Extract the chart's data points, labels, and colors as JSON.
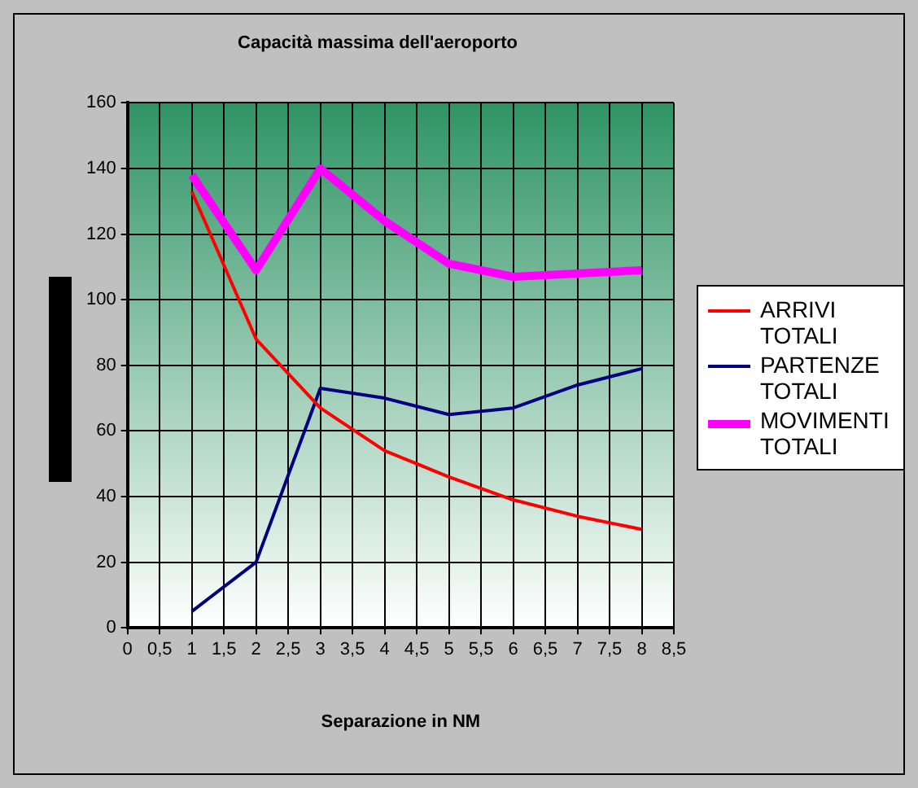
{
  "chart_data": {
    "type": "line",
    "title": "Capacità massima dell'aeroporto",
    "xlabel": "Separazione in NM",
    "x": [
      1,
      2,
      3,
      4,
      5,
      6,
      7,
      8
    ],
    "series": [
      {
        "name": "ARRIVI TOTALI",
        "color": "#ff0000",
        "values": [
          133,
          88,
          67,
          54,
          46,
          39,
          34,
          30
        ]
      },
      {
        "name": "PARTENZE TOTALI",
        "color": "#000080",
        "values": [
          5,
          20,
          73,
          70,
          65,
          67,
          74,
          79
        ]
      },
      {
        "name": "MOVIMENTI TOTALI",
        "color": "#ff00ff",
        "values": [
          138,
          109,
          140,
          124,
          111,
          107,
          108,
          109
        ]
      }
    ],
    "xlim": [
      0,
      8.5
    ],
    "xticks": [
      0,
      {
        "value": 0.5,
        "label": "0,5"
      },
      1,
      {
        "value": 1.5,
        "label": "1,5"
      },
      2,
      {
        "value": 2.5,
        "label": "2,5"
      },
      3,
      {
        "value": 3.5,
        "label": "3,5"
      },
      4,
      {
        "value": 4.5,
        "label": "4,5"
      },
      5,
      {
        "value": 5.5,
        "label": "5,5"
      },
      6,
      {
        "value": 6.5,
        "label": "6,5"
      },
      7,
      {
        "value": 7.5,
        "label": "7,5"
      },
      8,
      {
        "value": 8.5,
        "label": "8,5"
      }
    ],
    "ylim": [
      0,
      160
    ],
    "yticks": [
      0,
      20,
      40,
      60,
      80,
      100,
      120,
      140,
      160
    ],
    "grid": true,
    "legend": "right",
    "marker": "none",
    "line_style": "solid"
  }
}
